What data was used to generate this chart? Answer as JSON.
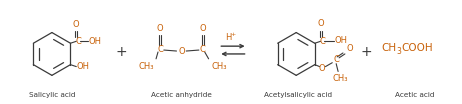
{
  "background_color": "#ffffff",
  "text_color_dark": "#3a3a3a",
  "text_color_orange": "#c8620a",
  "fig_width": 4.62,
  "fig_height": 1.04,
  "dpi": 100,
  "salicylic_label": "Salicylic acid",
  "acetic_anhydride_label": "Acetic anhydride",
  "acetylsalicylic_label": "Acetylsalicylic acid",
  "acetic_acid_label": "Acetic acid"
}
